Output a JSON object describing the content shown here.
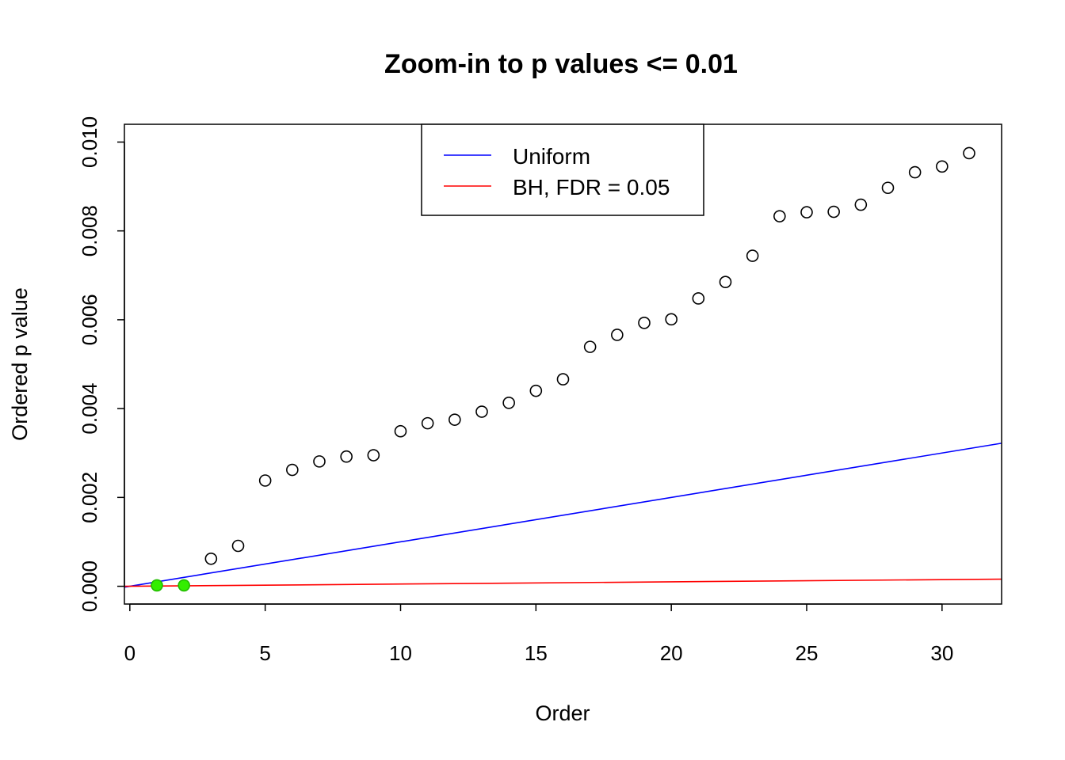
{
  "chart_data": {
    "type": "scatter",
    "title": "Zoom-in to p values <= 0.01",
    "xlabel": "Order",
    "ylabel": "Ordered p value",
    "xlim": [
      -0.2,
      32.2
    ],
    "ylim": [
      -0.0004,
      0.0104
    ],
    "xticks": [
      0,
      5,
      10,
      15,
      20,
      25,
      30
    ],
    "xtick_labels": [
      "0",
      "5",
      "10",
      "15",
      "20",
      "25",
      "30"
    ],
    "yticks": [
      0,
      0.002,
      0.004,
      0.006,
      0.008,
      0.01
    ],
    "ytick_labels": [
      "0.000",
      "0.002",
      "0.004",
      "0.006",
      "0.008",
      "0.010"
    ],
    "grid": false,
    "points": {
      "x": [
        1,
        2,
        3,
        4,
        5,
        6,
        7,
        8,
        9,
        10,
        11,
        12,
        13,
        14,
        15,
        16,
        17,
        18,
        19,
        20,
        21,
        22,
        23,
        24,
        25,
        26,
        27,
        28,
        29,
        30,
        31
      ],
      "y": [
        2e-05,
        2e-05,
        0.00062,
        0.00091,
        0.00238,
        0.00262,
        0.00281,
        0.00292,
        0.00295,
        0.00349,
        0.00367,
        0.00375,
        0.00393,
        0.00413,
        0.0044,
        0.00466,
        0.00539,
        0.00566,
        0.00593,
        0.00601,
        0.00648,
        0.00685,
        0.00744,
        0.00833,
        0.00842,
        0.00843,
        0.00859,
        0.00897,
        0.00932,
        0.00945,
        0.00975
      ],
      "significant": [
        true,
        true,
        false,
        false,
        false,
        false,
        false,
        false,
        false,
        false,
        false,
        false,
        false,
        false,
        false,
        false,
        false,
        false,
        false,
        false,
        false,
        false,
        false,
        false,
        false,
        false,
        false,
        false,
        false,
        false,
        false
      ]
    },
    "lines": [
      {
        "name": "Uniform",
        "intercept": 0,
        "slope": 0.0001,
        "color": "#0000ff"
      },
      {
        "name": "BH, FDR = 0.05",
        "intercept": 0,
        "slope": 5e-06,
        "color": "#ff0000"
      }
    ],
    "legend": {
      "placement": "top-center",
      "entries": [
        "Uniform",
        "BH, FDR = 0.05"
      ]
    },
    "colors": {
      "significant_fill": "#33ee00",
      "significant_stroke": "#22bb00",
      "point_stroke": "#000000"
    }
  }
}
